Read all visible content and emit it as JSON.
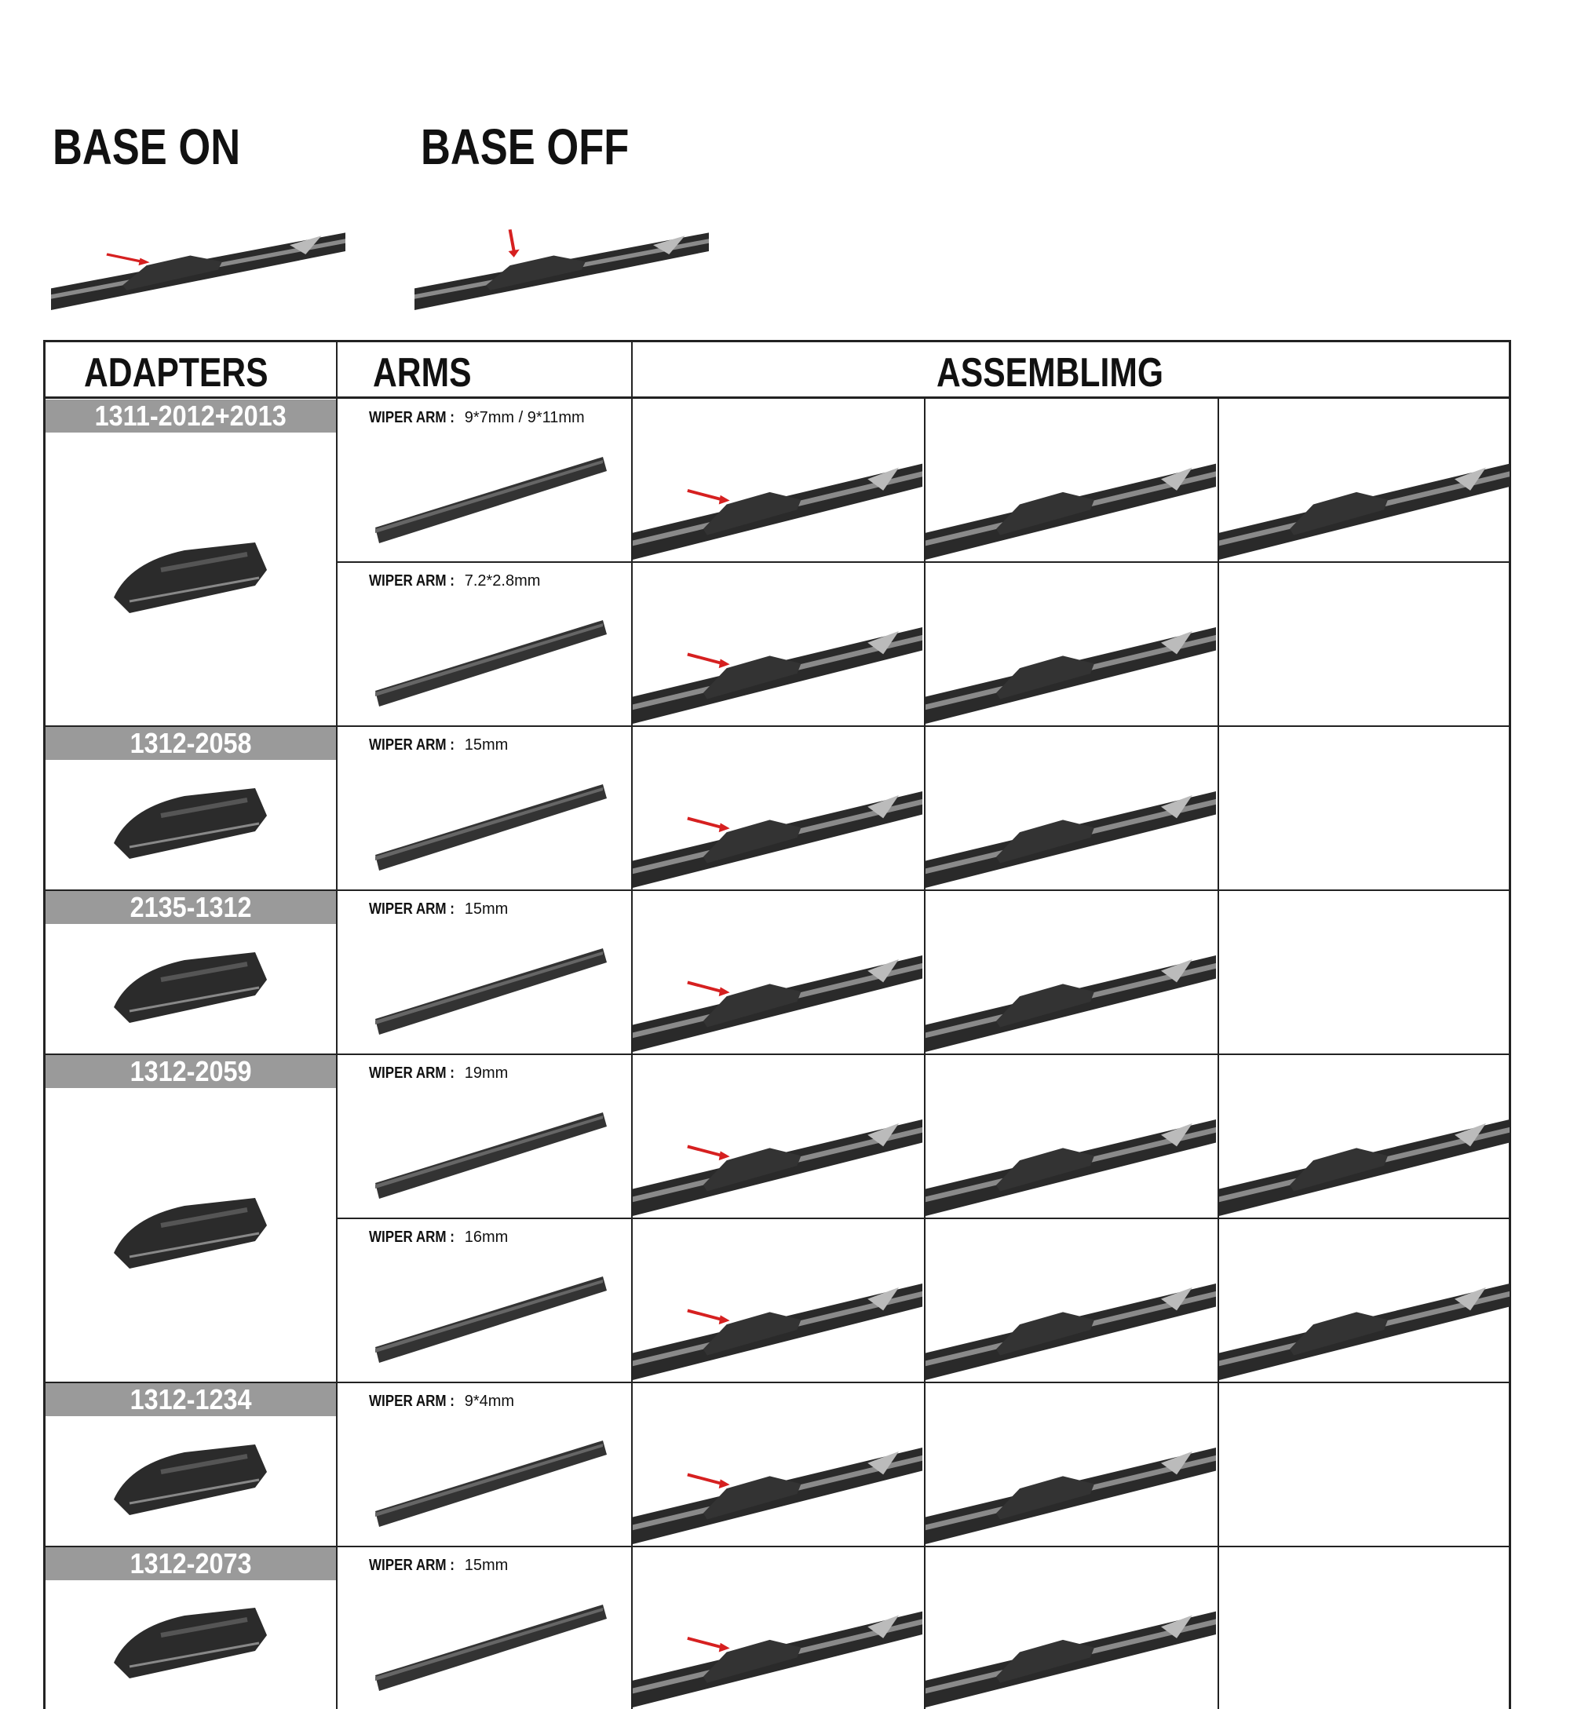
{
  "top": {
    "base_on": "BASE ON",
    "base_off": "BASE OFF"
  },
  "table": {
    "headers": {
      "adapters": "ADAPTERS",
      "arms": "ARMS",
      "assembling": "ASSEMBLIMG"
    },
    "adapters": [
      "1311-2012+2013",
      "1312-2058",
      "2135-1312",
      "1312-2059",
      "1312-1234",
      "1312-2073"
    ],
    "arms": [
      {
        "label": "WIPER ARM :",
        "size": "9*7mm / 9*11mm"
      },
      {
        "label": "WIPER ARM :",
        "size": "7.2*2.8mm"
      },
      {
        "label": "WIPER ARM :",
        "size": "15mm"
      },
      {
        "label": "WIPER ARM :",
        "size": "15mm"
      },
      {
        "label": "WIPER ARM :",
        "size": "19mm"
      },
      {
        "label": "WIPER ARM :",
        "size": "16mm"
      },
      {
        "label": "WIPER ARM :",
        "size": "9*4mm"
      },
      {
        "label": "WIPER ARM :",
        "size": "15mm"
      }
    ],
    "assembly_steps_per_row": [
      3,
      2,
      2,
      2,
      3,
      3,
      2,
      2
    ]
  },
  "colors": {
    "arrow": "#d62020",
    "label_bg": "#9a9a9a",
    "part": "#2a2a2a"
  }
}
